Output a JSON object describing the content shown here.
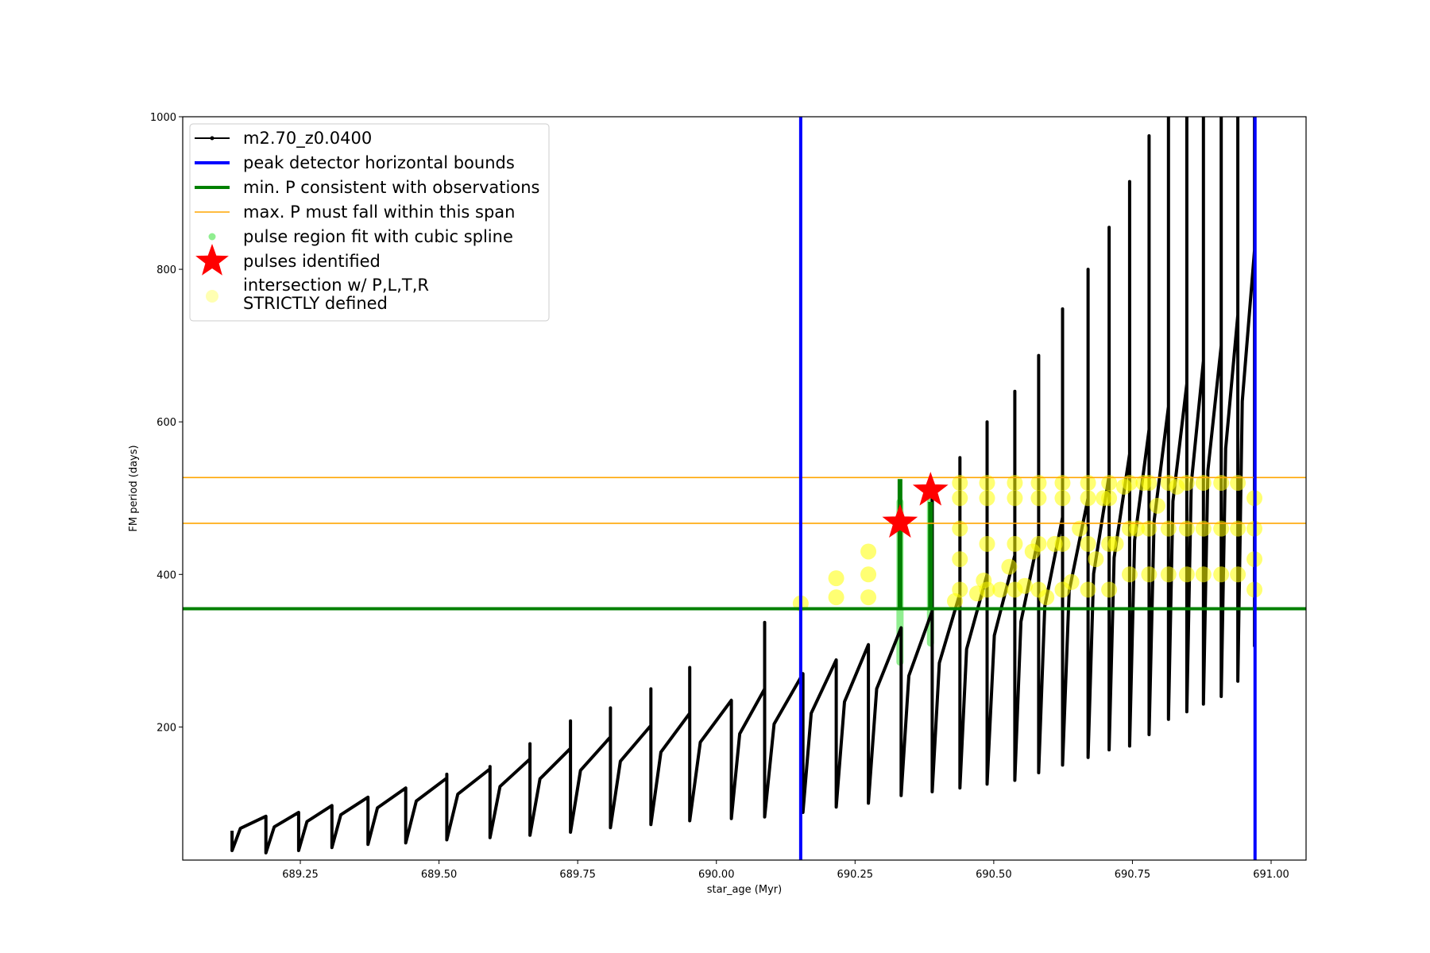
{
  "chart_data": {
    "type": "line",
    "xlabel": "star_age (Myr)",
    "ylabel": "FM period (days)",
    "xlim": [
      689.038,
      691.063
    ],
    "ylim": [
      25.5,
      1000
    ],
    "xticks": [
      689.25,
      {
        "value": 689.5,
        "label": "689.50"
      },
      689.75,
      {
        "value": 690,
        "label": "690.00"
      },
      690.25,
      {
        "value": 690.5,
        "label": "690.50"
      },
      690.75,
      {
        "value": 691,
        "label": "691.00"
      }
    ],
    "yticks": [
      200,
      400,
      600,
      800,
      1000
    ],
    "series": [
      {
        "name": "m2.70_z0.0400",
        "color": "#000000",
        "x": [
          689.127,
          689.127,
          689.142,
          689.188,
          689.188,
          689.203,
          689.247,
          689.247,
          689.262,
          689.307,
          689.307,
          689.323,
          689.372,
          689.372,
          689.389,
          689.44,
          689.44,
          689.459,
          689.514,
          689.514,
          689.514,
          689.534,
          689.592,
          689.592,
          689.592,
          689.61,
          689.664,
          689.664,
          689.664,
          689.682,
          689.737,
          689.737,
          689.737,
          689.755,
          689.809,
          689.809,
          689.809,
          689.827,
          689.882,
          689.882,
          689.882,
          689.9,
          689.952,
          689.952,
          689.952,
          689.971,
          690.027,
          690.027,
          690.042,
          690.087,
          690.087,
          690.087,
          690.104,
          690.156,
          690.156,
          690.171,
          690.216,
          690.216,
          690.231,
          690.274,
          690.274,
          690.289,
          690.333,
          690.333,
          690.347,
          690.389,
          690.389,
          690.389,
          690.402,
          690.439,
          690.439,
          690.439,
          690.451,
          690.488,
          690.488,
          690.488,
          690.501,
          690.538,
          690.538,
          690.538,
          690.549,
          690.581,
          690.581,
          690.581,
          690.592,
          690.624,
          690.624,
          690.624,
          690.636,
          690.67,
          690.67,
          690.67,
          690.68,
          690.708,
          690.708,
          690.708,
          690.717,
          690.745,
          690.745,
          690.745,
          690.754,
          690.78,
          690.78,
          690.78,
          690.789,
          690.815,
          690.815,
          690.815,
          690.823,
          690.848,
          690.848,
          690.848,
          690.856,
          690.878,
          690.878,
          690.878,
          690.886,
          690.91,
          690.91,
          690.91,
          690.918,
          690.94,
          690.94,
          690.94,
          690.948,
          690.97,
          690.97,
          690.97
        ],
        "y": [
          64,
          38,
          67,
          83,
          35,
          69,
          88,
          38,
          76,
          97,
          42,
          85,
          108,
          46,
          94,
          120,
          48,
          103,
          133,
          138,
          52,
          112,
          145,
          148,
          55,
          122,
          158,
          178,
          58,
          132,
          172,
          208,
          62,
          143,
          187,
          225,
          68,
          155,
          202,
          250,
          72,
          167,
          218,
          278,
          77,
          180,
          235,
          80,
          191,
          250,
          337,
          82,
          204,
          270,
          88,
          218,
          288,
          95,
          233,
          308,
          100,
          250,
          330,
          110,
          267,
          352,
          500,
          115,
          284,
          375,
          553,
          120,
          302,
          400,
          600,
          125,
          320,
          425,
          640,
          130,
          338,
          450,
          687,
          140,
          358,
          475,
          748,
          150,
          378,
          500,
          800,
          160,
          401,
          530,
          855,
          170,
          422,
          558,
          915,
          175,
          445,
          590,
          975,
          190,
          470,
          620,
          1000,
          210,
          496,
          650,
          1000,
          220,
          519,
          680,
          1000,
          230,
          536,
          700,
          1000,
          240,
          565,
          740,
          1000,
          260,
          627,
          825,
          1000,
          305
        ]
      }
    ],
    "bounds": {
      "name": "peak detector horizontal bounds",
      "color": "#0000ff",
      "x": [
        690.152,
        690.971
      ]
    },
    "min_p": {
      "name": "min. P consistent with observations",
      "color": "#008000",
      "y": 355
    },
    "max_p": {
      "name": "max. P must fall within this span",
      "color": "#ffa500",
      "y": [
        467,
        527
      ]
    },
    "spline": {
      "name": "pulse region fit with cubic spline",
      "color": "#90ee90",
      "core_color": "#008000",
      "x": [
        690.331,
        690.386
      ],
      "low": [
        285,
        310
      ],
      "high": [
        495,
        495
      ],
      "core_low": [
        355,
        355
      ],
      "core_high": [
        525,
        495
      ]
    },
    "pulses": {
      "name": "pulses identified",
      "color": "#ff0000",
      "x": [
        690.331,
        690.386
      ],
      "y": [
        468,
        510
      ]
    },
    "intersections": {
      "name": [
        "intersection w/ P,L,T,R",
        "STRICTLY defined"
      ],
      "color": "#ffff00",
      "x": [
        690.152,
        690.216,
        690.216,
        690.274,
        690.274,
        690.274,
        690.43,
        690.439,
        690.439,
        690.439,
        690.439,
        690.439,
        690.47,
        690.482,
        690.488,
        690.488,
        690.488,
        690.488,
        690.512,
        690.528,
        690.538,
        690.538,
        690.538,
        690.538,
        690.556,
        690.57,
        690.581,
        690.581,
        690.581,
        690.581,
        690.595,
        690.61,
        690.624,
        690.624,
        690.624,
        690.624,
        690.64,
        690.655,
        690.67,
        690.67,
        690.67,
        690.67,
        690.684,
        690.698,
        690.708,
        690.708,
        690.708,
        690.708,
        690.72,
        690.735,
        690.745,
        690.745,
        690.745,
        690.758,
        690.77,
        690.78,
        690.78,
        690.78,
        690.795,
        690.815,
        690.815,
        690.815,
        690.83,
        690.848,
        690.848,
        690.848,
        690.878,
        690.878,
        690.878,
        690.91,
        690.91,
        690.91,
        690.94,
        690.94,
        690.94,
        690.97,
        690.97,
        690.97,
        690.97
      ],
      "y": [
        362,
        370,
        395,
        370,
        400,
        430,
        365,
        380,
        420,
        460,
        500,
        520,
        375,
        392,
        380,
        440,
        500,
        520,
        380,
        410,
        380,
        440,
        500,
        520,
        385,
        430,
        380,
        440,
        500,
        520,
        370,
        440,
        380,
        440,
        500,
        520,
        390,
        460,
        380,
        440,
        500,
        520,
        420,
        500,
        380,
        440,
        500,
        520,
        440,
        515,
        400,
        460,
        520,
        460,
        520,
        400,
        460,
        520,
        490,
        400,
        460,
        520,
        515,
        400,
        460,
        520,
        400,
        460,
        520,
        400,
        460,
        520,
        400,
        460,
        520,
        380,
        420,
        460,
        500
      ]
    }
  }
}
